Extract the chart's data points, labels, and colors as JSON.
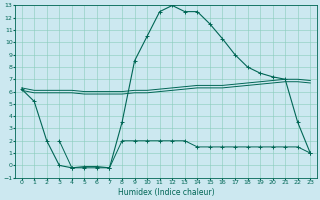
{
  "xlabel": "Humidex (Indice chaleur)",
  "bg_color": "#cce8f0",
  "grid_color": "#88ccbb",
  "line_color": "#006655",
  "xlim": [
    -0.5,
    23.5
  ],
  "ylim": [
    -1,
    13
  ],
  "xticks": [
    0,
    1,
    2,
    3,
    4,
    5,
    6,
    7,
    8,
    9,
    10,
    11,
    12,
    13,
    14,
    15,
    16,
    17,
    18,
    19,
    20,
    21,
    22,
    23
  ],
  "yticks": [
    -1,
    0,
    1,
    2,
    3,
    4,
    5,
    6,
    7,
    8,
    9,
    10,
    11,
    12,
    13
  ],
  "line_flat1_x": [
    0,
    1,
    2,
    3,
    4,
    5,
    6,
    7,
    8,
    9,
    10,
    11,
    12,
    13,
    14,
    15,
    16,
    17,
    18,
    19,
    20,
    21,
    22,
    23
  ],
  "line_flat1_y": [
    6.3,
    6.1,
    6.1,
    6.1,
    6.1,
    6.0,
    6.0,
    6.0,
    6.0,
    6.1,
    6.1,
    6.2,
    6.3,
    6.4,
    6.5,
    6.5,
    6.5,
    6.6,
    6.7,
    6.8,
    6.9,
    7.0,
    7.0,
    6.9
  ],
  "line_flat2_x": [
    0,
    1,
    2,
    3,
    4,
    5,
    6,
    7,
    8,
    9,
    10,
    11,
    12,
    13,
    14,
    15,
    16,
    17,
    18,
    19,
    20,
    21,
    22,
    23
  ],
  "line_flat2_y": [
    6.1,
    5.9,
    5.9,
    5.9,
    5.9,
    5.8,
    5.8,
    5.8,
    5.8,
    5.9,
    5.9,
    6.0,
    6.1,
    6.2,
    6.3,
    6.3,
    6.3,
    6.4,
    6.5,
    6.6,
    6.7,
    6.8,
    6.8,
    6.7
  ],
  "line_main_x": [
    0,
    1,
    2,
    3,
    4,
    5,
    6,
    7,
    8,
    9,
    10,
    11,
    12,
    13,
    14,
    15,
    16,
    17,
    18,
    19,
    20,
    21,
    22,
    23
  ],
  "line_main_y": [
    6.2,
    5.2,
    2.0,
    0.0,
    -0.2,
    -0.1,
    -0.1,
    -0.2,
    3.5,
    8.5,
    10.5,
    12.5,
    13.0,
    12.5,
    12.5,
    11.5,
    10.3,
    9.0,
    8.0,
    7.5,
    7.2,
    7.0,
    3.5,
    1.0
  ],
  "line_low_x": [
    3,
    4,
    5,
    6,
    7,
    8,
    9,
    10,
    11,
    12,
    13,
    14,
    15,
    16,
    17,
    18,
    19,
    20,
    21,
    22,
    23
  ],
  "line_low_y": [
    2.0,
    -0.2,
    -0.2,
    -0.2,
    -0.2,
    2.0,
    2.0,
    2.0,
    2.0,
    2.0,
    2.0,
    1.5,
    1.5,
    1.5,
    1.5,
    1.5,
    1.5,
    1.5,
    1.5,
    1.5,
    1.0
  ]
}
